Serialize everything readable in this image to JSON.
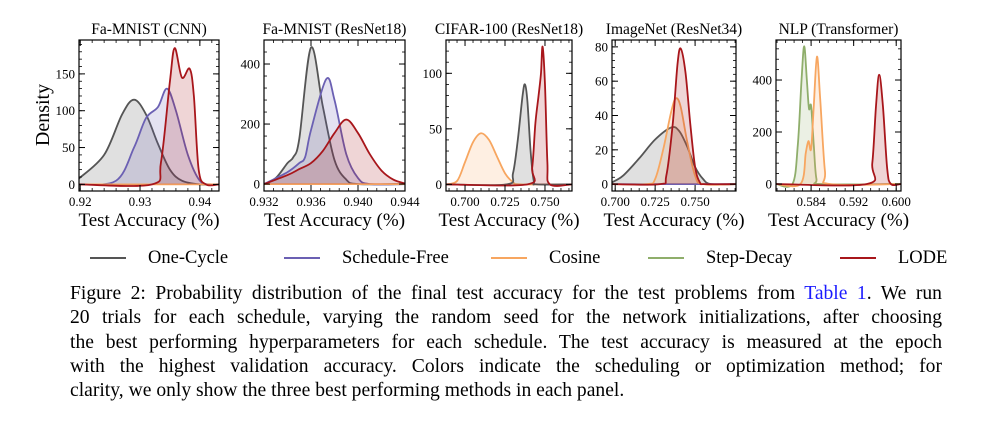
{
  "figure": {
    "ylabel": "Density",
    "legend": [
      {
        "label": "One-Cycle",
        "color": "#555555"
      },
      {
        "label": "Schedule-Free",
        "color": "#6b60b3"
      },
      {
        "label": "Cosine",
        "color": "#f7a660"
      },
      {
        "label": "Step-Decay",
        "color": "#8fae6b"
      },
      {
        "label": "LODE",
        "color": "#a8161b"
      }
    ]
  },
  "chart_data": [
    {
      "type": "area",
      "title": "Fa-MNIST (CNN)",
      "xlabel": "Test Accuracy (%)",
      "ylabel": "Density",
      "xlim": [
        0.9198,
        0.9432
      ],
      "ylim": [
        -9,
        196
      ],
      "xticks": [
        "0.92",
        "0.93",
        "0.94"
      ],
      "yticks": [
        "0",
        "50",
        "100",
        "150"
      ],
      "series": [
        {
          "name": "One-Cycle",
          "points": [
            [
              0.9198,
              8
            ],
            [
              0.924,
              40
            ],
            [
              0.927,
              95
            ],
            [
              0.929,
              115
            ],
            [
              0.931,
              95
            ],
            [
              0.933,
              55
            ],
            [
              0.935,
              20
            ],
            [
              0.937,
              5
            ],
            [
              0.94,
              0
            ],
            [
              0.9432,
              0
            ]
          ]
        },
        {
          "name": "Schedule-Free",
          "points": [
            [
              0.9198,
              0
            ],
            [
              0.926,
              5
            ],
            [
              0.929,
              50
            ],
            [
              0.931,
              90
            ],
            [
              0.933,
              105
            ],
            [
              0.9345,
              130
            ],
            [
              0.936,
              100
            ],
            [
              0.938,
              40
            ],
            [
              0.94,
              5
            ],
            [
              0.942,
              0
            ],
            [
              0.9432,
              0
            ]
          ]
        },
        {
          "name": "Cosine",
          "points": [
            [
              0.9198,
              0
            ],
            [
              0.9432,
              0
            ]
          ]
        },
        {
          "name": "LODE",
          "points": [
            [
              0.9198,
              0
            ],
            [
              0.932,
              0
            ],
            [
              0.9335,
              30
            ],
            [
              0.935,
              140
            ],
            [
              0.9358,
              185
            ],
            [
              0.937,
              145
            ],
            [
              0.9383,
              157
            ],
            [
              0.939,
              120
            ],
            [
              0.9398,
              20
            ],
            [
              0.941,
              0
            ],
            [
              0.9432,
              0
            ]
          ]
        }
      ]
    },
    {
      "type": "area",
      "title": "Fa-MNIST (ResNet18)",
      "xlabel": "Test Accuracy (%)",
      "xlim": [
        0.932,
        0.944
      ],
      "ylim": [
        -23,
        480
      ],
      "xticks": [
        "0.932",
        "0.936",
        "0.940",
        "0.944"
      ],
      "yticks": [
        "0",
        "200",
        "400"
      ],
      "series": [
        {
          "name": "One-Cycle",
          "points": [
            [
              0.932,
              0
            ],
            [
              0.933,
              20
            ],
            [
              0.934,
              70
            ],
            [
              0.9345,
              90
            ],
            [
              0.935,
              150
            ],
            [
              0.936,
              455
            ],
            [
              0.937,
              260
            ],
            [
              0.938,
              80
            ],
            [
              0.939,
              15
            ],
            [
              0.94,
              0
            ],
            [
              0.944,
              0
            ]
          ]
        },
        {
          "name": "Schedule-Free",
          "points": [
            [
              0.932,
              0
            ],
            [
              0.934,
              40
            ],
            [
              0.935,
              70
            ],
            [
              0.9355,
              90
            ],
            [
              0.936,
              180
            ],
            [
              0.9373,
              350
            ],
            [
              0.938,
              280
            ],
            [
              0.939,
              100
            ],
            [
              0.94,
              20
            ],
            [
              0.941,
              0
            ],
            [
              0.944,
              0
            ]
          ]
        },
        {
          "name": "Cosine",
          "points": [
            [
              0.932,
              0
            ],
            [
              0.944,
              0
            ]
          ]
        },
        {
          "name": "LODE",
          "points": [
            [
              0.932,
              0
            ],
            [
              0.934,
              30
            ],
            [
              0.935,
              50
            ],
            [
              0.936,
              70
            ],
            [
              0.937,
              110
            ],
            [
              0.938,
              170
            ],
            [
              0.939,
              215
            ],
            [
              0.94,
              170
            ],
            [
              0.941,
              100
            ],
            [
              0.942,
              45
            ],
            [
              0.943,
              15
            ],
            [
              0.944,
              2
            ]
          ]
        }
      ]
    },
    {
      "type": "area",
      "title": "CIFAR-100 (ResNet18)",
      "xlabel": "Test Accuracy (%)",
      "xlim": [
        0.6881,
        0.7669
      ],
      "ylim": [
        -6,
        130
      ],
      "xticks": [
        "0.700",
        "0.725",
        "0.750"
      ],
      "yticks": [
        "0",
        "50",
        "100"
      ],
      "series": [
        {
          "name": "Cosine",
          "points": [
            [
              0.6881,
              0
            ],
            [
              0.695,
              3
            ],
            [
              0.7,
              20
            ],
            [
              0.705,
              38
            ],
            [
              0.71,
              46
            ],
            [
              0.715,
              40
            ],
            [
              0.72,
              25
            ],
            [
              0.725,
              10
            ],
            [
              0.73,
              2
            ],
            [
              0.735,
              0
            ],
            [
              0.7669,
              0
            ]
          ]
        },
        {
          "name": "One-Cycle",
          "points": [
            [
              0.6881,
              0
            ],
            [
              0.726,
              0
            ],
            [
              0.73,
              10
            ],
            [
              0.733,
              40
            ],
            [
              0.736,
              80
            ],
            [
              0.7375,
              90
            ],
            [
              0.739,
              75
            ],
            [
              0.741,
              30
            ],
            [
              0.743,
              3
            ],
            [
              0.745,
              0
            ],
            [
              0.7669,
              0
            ]
          ]
        },
        {
          "name": "LODE",
          "points": [
            [
              0.6881,
              0
            ],
            [
              0.739,
              0
            ],
            [
              0.742,
              15
            ],
            [
              0.744,
              55
            ],
            [
              0.746,
              80
            ],
            [
              0.7475,
              100
            ],
            [
              0.7485,
              124
            ],
            [
              0.75,
              90
            ],
            [
              0.7515,
              20
            ],
            [
              0.753,
              0
            ],
            [
              0.7669,
              0
            ]
          ]
        }
      ]
    },
    {
      "type": "area",
      "title": "ImageNet (ResNet34)",
      "xlabel": "Test Accuracy (%)",
      "xlim": [
        0.698,
        0.7756
      ],
      "ylim": [
        -4,
        84
      ],
      "xticks": [
        "0.700",
        "0.725",
        "0.750"
      ],
      "yticks": [
        "0",
        "20",
        "40",
        "60",
        "80"
      ],
      "series": [
        {
          "name": "One-Cycle",
          "points": [
            [
              0.698,
              1
            ],
            [
              0.705,
              5
            ],
            [
              0.715,
              15
            ],
            [
              0.725,
              26
            ],
            [
              0.735,
              33
            ],
            [
              0.74,
              31
            ],
            [
              0.745,
              22
            ],
            [
              0.75,
              10
            ],
            [
              0.755,
              3
            ],
            [
              0.76,
              0
            ],
            [
              0.7756,
              0
            ]
          ]
        },
        {
          "name": "Schedule-Free",
          "points": [
            [
              0.698,
              0
            ],
            [
              0.7756,
              0
            ]
          ]
        },
        {
          "name": "Cosine",
          "points": [
            [
              0.698,
              0
            ],
            [
              0.72,
              0
            ],
            [
              0.725,
              3
            ],
            [
              0.73,
              20
            ],
            [
              0.735,
              42
            ],
            [
              0.738,
              50
            ],
            [
              0.741,
              45
            ],
            [
              0.745,
              25
            ],
            [
              0.75,
              5
            ],
            [
              0.755,
              0
            ],
            [
              0.7756,
              0
            ]
          ]
        },
        {
          "name": "LODE",
          "points": [
            [
              0.698,
              0
            ],
            [
              0.728,
              0
            ],
            [
              0.732,
              5
            ],
            [
              0.736,
              35
            ],
            [
              0.739,
              70
            ],
            [
              0.741,
              79
            ],
            [
              0.744,
              65
            ],
            [
              0.747,
              35
            ],
            [
              0.75,
              10
            ],
            [
              0.753,
              1
            ],
            [
              0.756,
              0
            ],
            [
              0.7756,
              0
            ]
          ]
        }
      ]
    },
    {
      "type": "area",
      "title": "NLP (Transformer)",
      "xlabel": "Test Accuracy (%)",
      "xlim": [
        0.5774,
        0.6009
      ],
      "ylim": [
        -27,
        554
      ],
      "xticks": [
        "0.584",
        "0.592",
        "0.600"
      ],
      "yticks": [
        "0",
        "200",
        "400"
      ],
      "series": [
        {
          "name": "Step-Decay",
          "points": [
            [
              0.5774,
              0
            ],
            [
              0.5805,
              0
            ],
            [
              0.5815,
              150
            ],
            [
              0.5822,
              400
            ],
            [
              0.5827,
              530
            ],
            [
              0.5832,
              400
            ],
            [
              0.5836,
              290
            ],
            [
              0.584,
              300
            ],
            [
              0.5845,
              150
            ],
            [
              0.585,
              20
            ],
            [
              0.586,
              0
            ],
            [
              0.6009,
              0
            ]
          ]
        },
        {
          "name": "Cosine",
          "points": [
            [
              0.5774,
              0
            ],
            [
              0.582,
              0
            ],
            [
              0.583,
              120
            ],
            [
              0.5835,
              165
            ],
            [
              0.584,
              135
            ],
            [
              0.5845,
              300
            ],
            [
              0.5851,
              490
            ],
            [
              0.5857,
              330
            ],
            [
              0.5866,
              50
            ],
            [
              0.5875,
              0
            ],
            [
              0.6009,
              0
            ]
          ]
        },
        {
          "name": "LODE",
          "points": [
            [
              0.5774,
              0
            ],
            [
              0.5945,
              0
            ],
            [
              0.5955,
              80
            ],
            [
              0.5962,
              300
            ],
            [
              0.5968,
              420
            ],
            [
              0.5975,
              300
            ],
            [
              0.5983,
              60
            ],
            [
              0.599,
              0
            ],
            [
              0.6009,
              0
            ]
          ]
        }
      ]
    }
  ],
  "caption": {
    "line1_pre": "Figure 2: Probability distribution of the final test accuracy for the test problems from ",
    "line1_link": "Table 1",
    "line1_post": ". We run",
    "lines": [
      "20 trials for each schedule, varying the random seed for the network initializations, after choosing",
      "the best performing hyperparameters for each schedule. The test accuracy is measured at the epoch",
      "with the highest validation accuracy. Colors indicate the scheduling or optimization method; for",
      "clarity, we only show the three best performing methods in each panel."
    ]
  }
}
